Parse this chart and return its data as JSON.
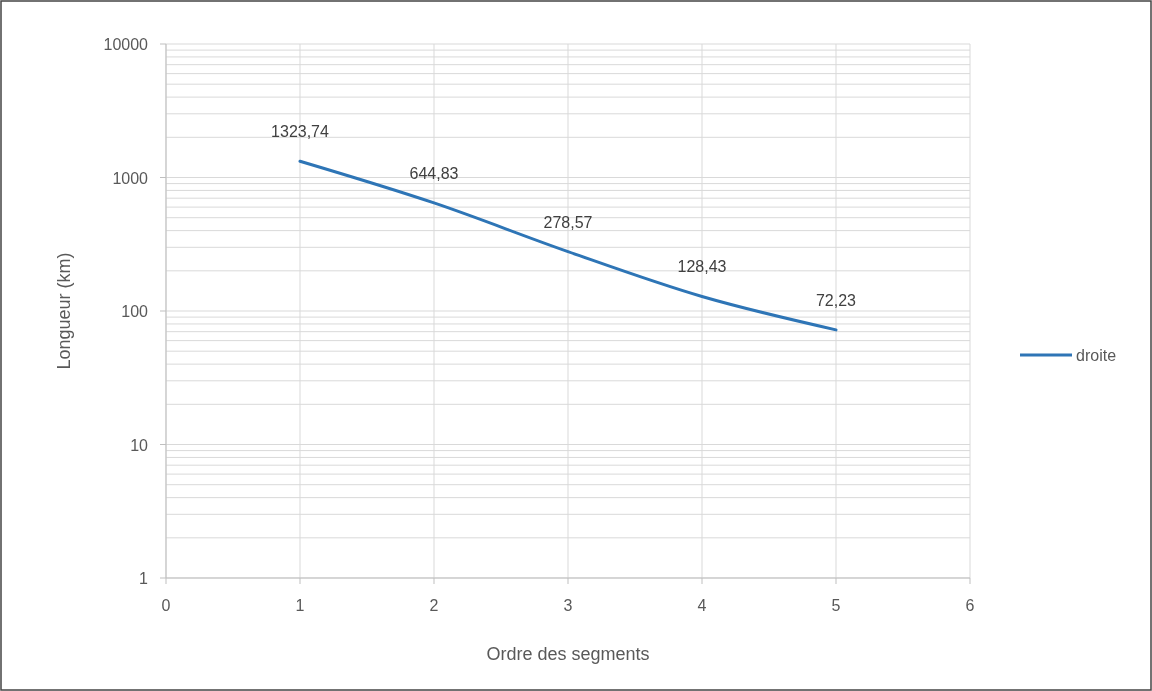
{
  "chart_data": {
    "type": "line",
    "xlabel": "Ordre des segments",
    "ylabel": "Longueur (km)",
    "x": [
      1,
      2,
      3,
      4,
      5
    ],
    "series": [
      {
        "name": "droite",
        "color": "#2e75b6",
        "values": [
          1323.74,
          644.83,
          278.57,
          128.43,
          72.23
        ],
        "value_labels": [
          "1323,74",
          "644,83",
          "278,57",
          "128,43",
          "72,23"
        ]
      }
    ],
    "xlim": [
      0,
      6
    ],
    "xticks": [
      0,
      1,
      2,
      3,
      4,
      5,
      6
    ],
    "ylim": [
      1,
      10000
    ],
    "yticks": [
      1,
      10,
      100,
      1000,
      10000
    ],
    "log": "y",
    "grid": true,
    "legend": "right",
    "marker": "none",
    "line_style": "solid"
  }
}
